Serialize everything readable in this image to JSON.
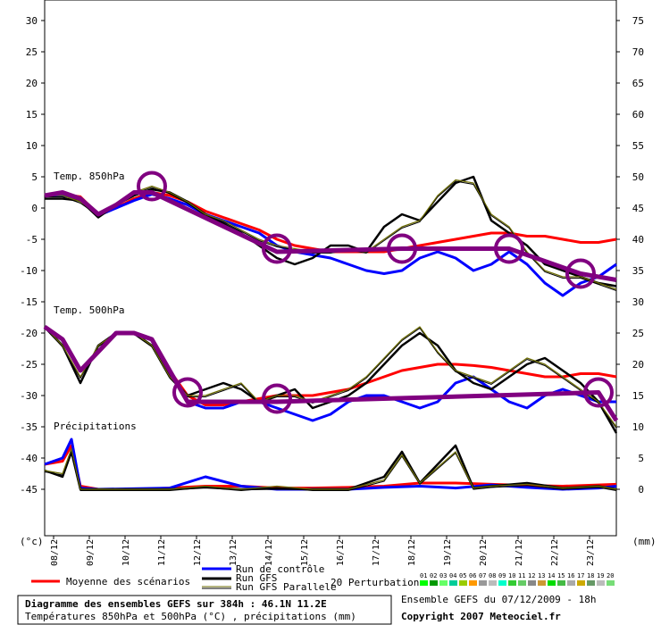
{
  "chart_data": {
    "type": "line",
    "x_dates": [
      "08/12",
      "09/12",
      "10/12",
      "11/12",
      "12/12",
      "13/12",
      "14/12",
      "15/12",
      "16/12",
      "17/12",
      "18/12",
      "19/12",
      "20/12",
      "21/12",
      "22/12",
      "23/12"
    ],
    "x_range_days": [
      7.75,
      23.75
    ],
    "left_axis": {
      "unit": "(°c)",
      "ticks": [
        30,
        25,
        20,
        15,
        10,
        5,
        0,
        -5,
        -10,
        -15,
        -20,
        -25,
        -30,
        -35,
        -40,
        -45
      ],
      "range": [
        -50,
        33
      ]
    },
    "right_axis": {
      "unit": "(mm)",
      "ticks": [
        75,
        70,
        65,
        60,
        55,
        50,
        45,
        40,
        35,
        30,
        25,
        20,
        15,
        10,
        5,
        0
      ],
      "range": [
        -5,
        78
      ]
    },
    "panel_labels": [
      "Temp. 850hPa",
      "Temp. 500hPa",
      "Précipitations"
    ],
    "series": [
      {
        "name": "Moyenne des scénarios",
        "panel": "Temp. 850hPa",
        "color": "#ff0000",
        "x": [
          7.75,
          8.25,
          8.75,
          9.25,
          9.75,
          10.25,
          10.75,
          11.25,
          11.75,
          12.25,
          12.75,
          13.25,
          13.75,
          14.25,
          14.75,
          15.25,
          15.75,
          16.25,
          16.75,
          17.25,
          17.75,
          18.25,
          18.75,
          19.25,
          19.75,
          20.25,
          20.75,
          21.25,
          21.75,
          22.25,
          22.75,
          23.25,
          23.75
        ],
        "y": [
          2,
          2.2,
          1.8,
          -1,
          0,
          1.5,
          2.5,
          2,
          1,
          -0.5,
          -1.5,
          -2.5,
          -3.5,
          -5,
          -6,
          -6.5,
          -7,
          -7,
          -7,
          -7,
          -6.5,
          -6,
          -5.5,
          -5,
          -4.5,
          -4,
          -4,
          -4.5,
          -4.5,
          -5,
          -5.5,
          -5.5,
          -5
        ]
      },
      {
        "name": "Moyenne des scénarios",
        "panel": "Temp. 500hPa",
        "color": "#ff0000",
        "x": [
          7.75,
          8.25,
          8.75,
          9.25,
          9.75,
          10.25,
          10.75,
          11.25,
          11.75,
          12.25,
          12.75,
          13.25,
          13.75,
          14.25,
          14.75,
          15.25,
          15.75,
          16.25,
          16.75,
          17.25,
          17.75,
          18.25,
          18.75,
          19.25,
          19.75,
          20.25,
          20.75,
          21.25,
          21.75,
          22.25,
          22.75,
          23.25,
          23.75
        ],
        "y": [
          -19,
          -21,
          -26,
          -23,
          -20,
          -20,
          -21,
          -26,
          -30,
          -31.5,
          -31.5,
          -31,
          -30.5,
          -30,
          -30,
          -30,
          -29.5,
          -29,
          -28,
          -27,
          -26,
          -25.5,
          -25,
          -25,
          -25.2,
          -25.5,
          -26,
          -26.5,
          -27,
          -27,
          -26.5,
          -26.5,
          -27
        ]
      },
      {
        "name": "Moyenne des scénarios",
        "panel": "Précipitations",
        "color": "#ff0000",
        "x": [
          7.75,
          8.25,
          8.5,
          8.75,
          9.25,
          9.75,
          10.25,
          11.25,
          12.25,
          13.25,
          14.25,
          15.25,
          16.25,
          17.25,
          18.25,
          19.25,
          20.25,
          21.25,
          22.25,
          23.25,
          23.75
        ],
        "y": [
          -41,
          -40.5,
          -38,
          -44.5,
          -45,
          -45,
          -45,
          -44.8,
          -44.5,
          -44.5,
          -44.8,
          -44.8,
          -44.7,
          -44.5,
          -44,
          -44,
          -44.2,
          -44.4,
          -44.5,
          -44.3,
          -44.2
        ]
      },
      {
        "name": "Run de contrôle",
        "panel": "Temp. 850hPa",
        "color": "#0000ff",
        "x": [
          7.75,
          8.25,
          8.75,
          9.25,
          9.75,
          10.25,
          10.75,
          11.25,
          11.75,
          12.25,
          12.75,
          13.25,
          13.75,
          14.25,
          14.75,
          15.25,
          15.75,
          16.25,
          16.75,
          17.25,
          17.75,
          18.25,
          18.75,
          19.25,
          19.75,
          20.25,
          20.75,
          21.25,
          21.75,
          22.25,
          22.75,
          23.25,
          23.75
        ],
        "y": [
          2,
          2,
          1.5,
          -1.2,
          0,
          1.2,
          2.2,
          1.5,
          0.5,
          -1,
          -2,
          -3,
          -4,
          -6,
          -7,
          -7.5,
          -8,
          -9,
          -10,
          -10.5,
          -10,
          -8,
          -7,
          -8,
          -10,
          -9,
          -7,
          -9,
          -12,
          -14,
          -12,
          -11,
          -9
        ]
      },
      {
        "name": "Run de contrôle",
        "panel": "Temp. 500hPa",
        "color": "#0000ff",
        "x": [
          7.75,
          8.25,
          8.75,
          9.25,
          9.75,
          10.25,
          10.75,
          11.25,
          11.75,
          12.25,
          12.75,
          13.25,
          13.75,
          14.25,
          14.75,
          15.25,
          15.75,
          16.25,
          16.75,
          17.25,
          17.75,
          18.25,
          18.75,
          19.25,
          19.75,
          20.25,
          20.75,
          21.25,
          21.75,
          22.25,
          22.75,
          23.25,
          23.75
        ],
        "y": [
          -19,
          -21,
          -26,
          -23,
          -20,
          -20,
          -21,
          -26,
          -31,
          -32,
          -32,
          -31,
          -31,
          -32,
          -33,
          -34,
          -33,
          -31,
          -30,
          -30,
          -31,
          -32,
          -31,
          -28,
          -27,
          -29,
          -31,
          -32,
          -30,
          -29,
          -30,
          -31,
          -31
        ]
      },
      {
        "name": "Run de contrôle",
        "panel": "Précipitations",
        "color": "#0000ff",
        "x": [
          7.75,
          8.25,
          8.5,
          8.75,
          9.25,
          11.25,
          12.25,
          13.25,
          14.25,
          15.25,
          16.25,
          17.25,
          18.25,
          19.25,
          20.25,
          21.25,
          22.25,
          23.25,
          23.75
        ],
        "y": [
          -41,
          -40,
          -37,
          -44.8,
          -45,
          -44.8,
          -43,
          -44.5,
          -45,
          -45,
          -45,
          -44.7,
          -44.5,
          -44.8,
          -44.3,
          -44.7,
          -45,
          -44.8,
          -44.5
        ]
      },
      {
        "name": "Run GFS",
        "panel": "Temp. 850hPa",
        "color": "#000000",
        "x": [
          7.75,
          8.25,
          8.75,
          9.25,
          9.75,
          10.25,
          10.75,
          11.25,
          11.75,
          12.25,
          12.75,
          13.25,
          13.75,
          14.25,
          14.75,
          15.25,
          15.75,
          16.25,
          16.75,
          17.25,
          17.75,
          18.25,
          18.75,
          19.25,
          19.75,
          20.25,
          20.75,
          21.25,
          21.75,
          22.25,
          22.75,
          23.25,
          23.75
        ],
        "y": [
          1.5,
          1.5,
          1.2,
          -1.5,
          0.5,
          2,
          3,
          2.5,
          1,
          -1,
          -2.5,
          -4,
          -6,
          -8,
          -9,
          -8,
          -6,
          -6,
          -7,
          -3,
          -1,
          -2,
          1,
          4,
          5,
          -2,
          -4,
          -6,
          -9,
          -10,
          -11,
          -12,
          -12.5
        ]
      },
      {
        "name": "Run GFS",
        "panel": "Temp. 500hPa",
        "color": "#000000",
        "x": [
          7.75,
          8.25,
          8.75,
          9.25,
          9.75,
          10.25,
          10.75,
          11.25,
          11.75,
          12.25,
          12.75,
          13.25,
          13.75,
          14.25,
          14.75,
          15.25,
          15.75,
          16.25,
          16.75,
          17.25,
          17.75,
          18.25,
          18.75,
          19.25,
          19.75,
          20.25,
          20.75,
          21.25,
          21.75,
          22.25,
          22.75,
          23.25,
          23.75
        ],
        "y": [
          -19,
          -22,
          -28,
          -22,
          -20,
          -20,
          -22,
          -27,
          -30,
          -29,
          -28,
          -29,
          -31,
          -30,
          -29,
          -32,
          -31,
          -30,
          -28,
          -25,
          -22,
          -20,
          -22,
          -26,
          -28,
          -29,
          -27,
          -25,
          -24,
          -26,
          -28,
          -31,
          -36
        ]
      },
      {
        "name": "Run GFS",
        "panel": "Précipitations",
        "color": "#000000",
        "x": [
          7.75,
          8.25,
          8.5,
          8.75,
          9.25,
          11.25,
          12.25,
          13.25,
          14.25,
          15.25,
          16.25,
          17.25,
          17.75,
          18.25,
          18.75,
          19.25,
          19.75,
          20.25,
          21.25,
          22.25,
          23.25,
          23.75
        ],
        "y": [
          -42,
          -43,
          -39,
          -45,
          -45,
          -45,
          -44.7,
          -45,
          -44.9,
          -45,
          -45,
          -43,
          -39,
          -44,
          -41,
          -38,
          -44.8,
          -44.5,
          -44,
          -44.8,
          -44.5,
          -45
        ]
      },
      {
        "name": "Run GFS Parallele",
        "panel": "Temp. 850hPa",
        "color": "#6b6b00",
        "x": [
          7.75,
          8.25,
          8.75,
          9.25,
          9.75,
          10.25,
          10.75,
          11.25,
          11.75,
          12.25,
          12.75,
          13.25,
          13.75,
          14.25,
          14.75,
          15.25,
          15.75,
          16.25,
          16.75,
          17.25,
          17.75,
          18.25,
          18.75,
          19.25,
          19.75,
          20.25,
          20.75,
          21.25,
          21.75,
          22.25,
          22.75,
          23.25,
          23.75
        ],
        "y": [
          2,
          2,
          1,
          -1,
          0.5,
          2.5,
          3.5,
          2.5,
          1,
          -1,
          -2,
          -3.5,
          -5,
          -6,
          -6.5,
          -7,
          -7,
          -6.5,
          -7,
          -5,
          -3,
          -2,
          2,
          4.5,
          4,
          -1,
          -3,
          -7,
          -10,
          -11,
          -11,
          -12,
          -13
        ]
      },
      {
        "name": "Run GFS Parallele",
        "panel": "Temp. 500hPa",
        "color": "#6b6b00",
        "x": [
          7.75,
          8.25,
          8.75,
          9.25,
          9.75,
          10.25,
          10.75,
          11.25,
          11.75,
          12.25,
          12.75,
          13.25,
          13.75,
          14.25,
          14.75,
          15.25,
          15.75,
          16.25,
          16.75,
          17.25,
          17.75,
          18.25,
          18.75,
          19.25,
          19.75,
          20.25,
          20.75,
          21.25,
          21.75,
          22.25,
          22.75,
          23.25,
          23.75
        ],
        "y": [
          -19,
          -22,
          -27,
          -22,
          -20,
          -20,
          -22,
          -27,
          -30,
          -30,
          -29,
          -28,
          -31,
          -30,
          -30,
          -31,
          -30,
          -29,
          -27,
          -24,
          -21,
          -19,
          -23,
          -26,
          -27,
          -28,
          -26,
          -24,
          -25,
          -27,
          -29,
          -31,
          -35
        ]
      },
      {
        "name": "Run GFS Parallele",
        "panel": "Précipitations",
        "color": "#6b6b00",
        "x": [
          7.75,
          8.25,
          8.5,
          8.75,
          9.25,
          11.25,
          12.25,
          13.25,
          14.25,
          15.25,
          16.25,
          17.25,
          17.75,
          18.25,
          18.75,
          19.25,
          19.75,
          20.25,
          21.25,
          22.25,
          23.25,
          23.75
        ],
        "y": [
          -42,
          -42.5,
          -38.5,
          -45,
          -45,
          -45,
          -44.5,
          -45,
          -44.5,
          -45,
          -45,
          -43.5,
          -39.5,
          -44,
          -41.5,
          -39,
          -44.8,
          -44.5,
          -44.2,
          -44.8,
          -44.5,
          -45
        ]
      },
      {
        "name": "Annotation (trait violet)",
        "panel": "Temp. 850hPa",
        "color": "#800080",
        "x": [
          7.75,
          8.25,
          8.75,
          9.25,
          9.75,
          10.25,
          10.75,
          14.25,
          17.75,
          20.75,
          22.75,
          23.75
        ],
        "y": [
          2,
          2.5,
          1.5,
          -1,
          0.5,
          2.5,
          2.5,
          -7,
          -6.5,
          -6.5,
          -10.5,
          -11.5
        ]
      },
      {
        "name": "Annotation (trait violet)",
        "panel": "Temp. 500hPa",
        "color": "#800080",
        "x": [
          7.75,
          8.25,
          8.75,
          9.25,
          9.75,
          10.25,
          10.75,
          11.25,
          11.75,
          14.25,
          23.25,
          23.75
        ],
        "y": [
          -19,
          -21,
          -26,
          -23,
          -20,
          -20,
          -21,
          -26,
          -31,
          -31,
          -29.5,
          -34
        ]
      }
    ],
    "annotation_circles": [
      {
        "x": 10.75,
        "y": 3.5
      },
      {
        "x": 14.25,
        "y": -6.5
      },
      {
        "x": 17.75,
        "y": -6.5
      },
      {
        "x": 20.75,
        "y": -6.5
      },
      {
        "x": 22.75,
        "y": -10.5
      },
      {
        "x": 11.75,
        "y": -29.5
      },
      {
        "x": 14.25,
        "y": -30.5
      },
      {
        "x": 23.25,
        "y": -29.5
      }
    ],
    "perturbation_colors": [
      "#00ff00",
      "#009900",
      "#66ff66",
      "#00cc99",
      "#99cc00",
      "#ff9900",
      "#999999",
      "#bbbbbb",
      "#00ffcc",
      "#33cc33",
      "#66cc66",
      "#888888",
      "#cc9933",
      "#00dd00",
      "#44bb44",
      "#aaaaaa",
      "#ccaa00",
      "#669966",
      "#bbbbbb",
      "#77dd77"
    ]
  },
  "legend": {
    "mean_label": "Moyenne des scénarios",
    "control_label": "Run de contrôle",
    "gfs_label": "Run GFS",
    "gfs_par_label": "Run GFS Parallele",
    "pert_label": "20 Perturbations",
    "pert_numbers": [
      "01",
      "02",
      "03",
      "04",
      "05",
      "06",
      "07",
      "08",
      "09",
      "10",
      "11",
      "12",
      "13",
      "14",
      "15",
      "16",
      "17",
      "18",
      "19",
      "20"
    ]
  },
  "footer": {
    "title_line": "Diagramme des ensembles GEFS sur 384h : 46.1N 11.2E",
    "subtitle_line": "Températures 850hPa et 500hPa (°C) , précipitations (mm)",
    "ensemble_run": "Ensemble GEFS du 07/12/2009 - 18h",
    "copyright": "Copyright 2007 Meteociel.fr"
  }
}
